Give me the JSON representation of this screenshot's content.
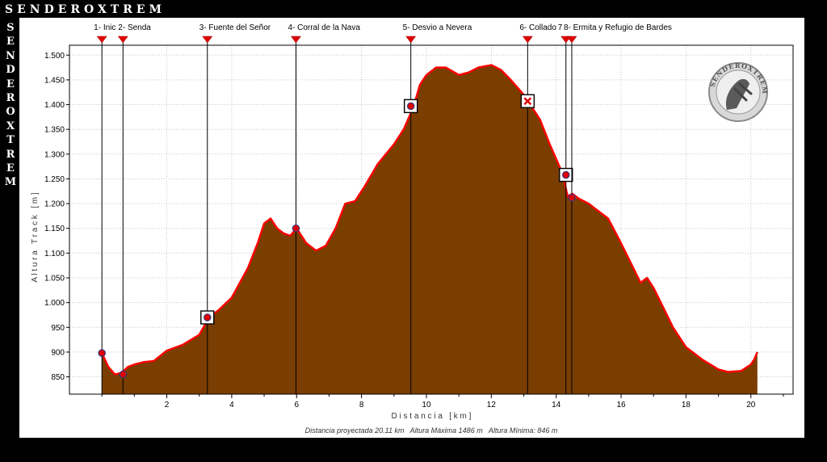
{
  "brand": {
    "top_text": "SENDEROXTREM",
    "side_text": "SENDEROXTREM",
    "logo_text": "SENDEROXTREM"
  },
  "colors": {
    "fill": "#7a3d02",
    "line": "#ff0000",
    "marker": "#e00000",
    "background": "#000000",
    "plot_bg": "#ffffff"
  },
  "chart_data": {
    "type": "area",
    "xlabel": "D i s t a n c i a   [ k m ]",
    "ylabel": "A l t u r a   T r a c k   [ m ]",
    "xlim": [
      -1,
      21.3
    ],
    "ylim": [
      815,
      1520
    ],
    "x_ticks": [
      2,
      4,
      6,
      8,
      10,
      12,
      14,
      16,
      18,
      20
    ],
    "y_ticks": [
      850,
      900,
      950,
      1000,
      1050,
      1100,
      1150,
      1200,
      1250,
      1300,
      1350,
      1400,
      1450,
      1500
    ],
    "y_tick_labels": [
      "850",
      "900",
      "950",
      "1.000",
      "1.050",
      "1.100",
      "1.150",
      "1.200",
      "1.250",
      "1.300",
      "1.350",
      "1.400",
      "1.450",
      "1.500"
    ],
    "grid": true,
    "summary": "Distancia proyectada 20.11 km   Altura Máxima 1486 m   Altura Mínima: 846 m",
    "series": [
      {
        "x": [
          0,
          0.2,
          0.4,
          0.6,
          0.8,
          1.0,
          1.3,
          1.6,
          2.0,
          2.5,
          3.0,
          3.3,
          3.6,
          4.0,
          4.5,
          4.8,
          5.0,
          5.2,
          5.4,
          5.6,
          5.8,
          6.0,
          6.3,
          6.6,
          6.9,
          7.2,
          7.5,
          7.8,
          8.1,
          8.5,
          9.0,
          9.3,
          9.6,
          9.8,
          10.0,
          10.3,
          10.6,
          11.0,
          11.3,
          11.6,
          12.0,
          12.3,
          12.6,
          13.0,
          13.2,
          13.5,
          13.8,
          14.0,
          14.2,
          14.35,
          14.5,
          14.7,
          15.0,
          15.3,
          15.6,
          16.0,
          16.3,
          16.6,
          16.8,
          17.0,
          17.3,
          17.6,
          18.0,
          18.5,
          19.0,
          19.3,
          19.7,
          20.0,
          20.1,
          20.2
        ],
        "y": [
          898,
          870,
          855,
          858,
          870,
          875,
          880,
          882,
          903,
          915,
          935,
          970,
          985,
          1010,
          1070,
          1120,
          1160,
          1170,
          1150,
          1140,
          1135,
          1150,
          1120,
          1105,
          1115,
          1150,
          1200,
          1205,
          1235,
          1280,
          1320,
          1350,
          1395,
          1440,
          1460,
          1475,
          1475,
          1460,
          1465,
          1475,
          1480,
          1470,
          1450,
          1420,
          1400,
          1370,
          1320,
          1290,
          1260,
          1215,
          1220,
          1210,
          1200,
          1185,
          1170,
          1120,
          1080,
          1040,
          1050,
          1030,
          990,
          950,
          910,
          885,
          865,
          860,
          862,
          875,
          885,
          900
        ]
      }
    ],
    "waypoints": [
      {
        "label": "1- Inic",
        "x": 0,
        "y": 898,
        "marker": "circle"
      },
      {
        "label": "2- Senda",
        "x": 0.65,
        "y": 855,
        "marker": "circle"
      },
      {
        "label": "3- Fuente del Señor",
        "x": 3.25,
        "y": 970,
        "marker": "boxed-circle"
      },
      {
        "label": "4- Corral de la Nava",
        "x": 5.98,
        "y": 1150,
        "marker": "circle"
      },
      {
        "label": "5- Desvio a Nevera",
        "x": 9.52,
        "y": 1397,
        "marker": "boxed-circle"
      },
      {
        "label": "6- Collado",
        "x": 13.12,
        "y": 1407,
        "marker": "boxed-x"
      },
      {
        "label": "7",
        "x": 14.3,
        "y": 1258,
        "marker": "boxed-circle"
      },
      {
        "label": "8- Ermita y Refugio de Bardes",
        "x": 14.48,
        "y": 1212,
        "marker": "circle"
      }
    ]
  }
}
